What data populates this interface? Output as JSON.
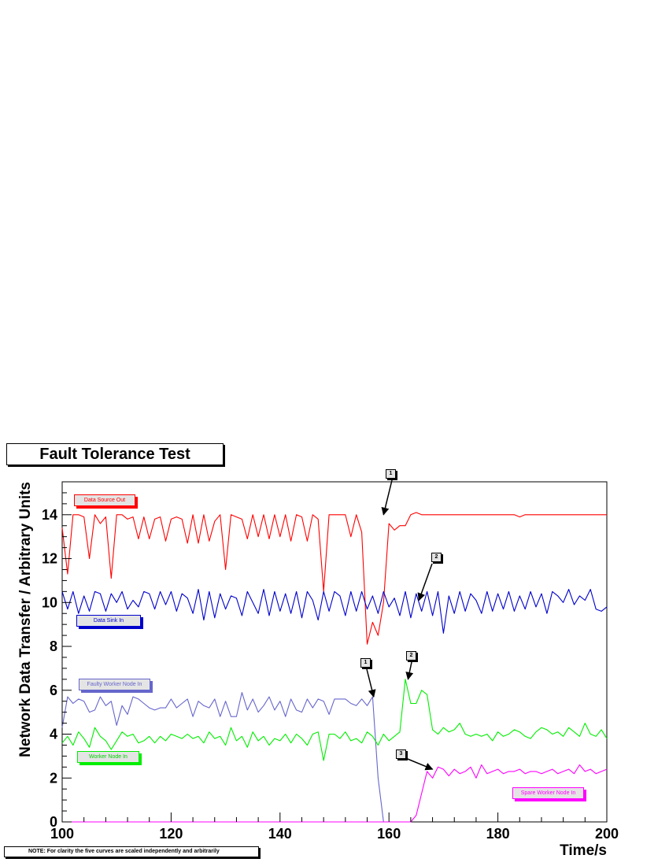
{
  "chart_data": {
    "type": "line",
    "title": "Fault Tolerance Test",
    "xlabel": "Time/s",
    "ylabel": "Network Data Transfer / Arbitrary Units",
    "xlim": [
      100,
      200
    ],
    "ylim": [
      0,
      15.5
    ],
    "x_ticks": [
      "100",
      "120",
      "140",
      "160",
      "180",
      "200"
    ],
    "y_ticks": [
      "0",
      "2",
      "4",
      "6",
      "8",
      "10",
      "12",
      "14"
    ],
    "grid": false,
    "note": "NOTE: For clarity the five curves are scaled independently and arbitrarily",
    "series": [
      {
        "name": "Data Source Out",
        "color": "#ff0000",
        "x": [
          100,
          101,
          102,
          103,
          104,
          105,
          106,
          107,
          108,
          109,
          110,
          111,
          112,
          113,
          114,
          115,
          116,
          117,
          118,
          119,
          120,
          121,
          122,
          123,
          124,
          125,
          126,
          127,
          128,
          129,
          130,
          131,
          132,
          133,
          134,
          135,
          136,
          137,
          138,
          139,
          140,
          141,
          142,
          143,
          144,
          145,
          146,
          147,
          148,
          149,
          150,
          151,
          152,
          153,
          154,
          155,
          156,
          157,
          158,
          159,
          160,
          161,
          162,
          163,
          164,
          165,
          166,
          167,
          168,
          169,
          170,
          171,
          172,
          173,
          174,
          175,
          176,
          177,
          178,
          179,
          180,
          181,
          182,
          183,
          184,
          185,
          186,
          187,
          188,
          189,
          190,
          191,
          192,
          193,
          194,
          195,
          196,
          197,
          198,
          199,
          200
        ],
        "y": [
          13.4,
          11.3,
          14.0,
          14.0,
          13.9,
          12.0,
          14.0,
          13.6,
          13.9,
          11.1,
          14.0,
          14.0,
          13.8,
          13.9,
          12.9,
          13.9,
          12.9,
          13.8,
          13.9,
          12.8,
          13.8,
          13.9,
          13.8,
          12.7,
          14.0,
          12.7,
          14.0,
          12.8,
          13.7,
          14.0,
          11.5,
          14.0,
          13.9,
          13.8,
          12.9,
          14.0,
          13.0,
          14.0,
          12.9,
          14.0,
          13.0,
          14.0,
          12.8,
          14.0,
          13.9,
          12.8,
          14.0,
          13.8,
          10.5,
          14.0,
          14.0,
          14.0,
          14.0,
          13.0,
          14.0,
          13.2,
          8.1,
          9.1,
          8.5,
          10.0,
          13.6,
          13.3,
          13.5,
          13.5,
          14.0,
          14.1,
          14.0,
          14.0,
          14.0,
          14.0,
          14.0,
          14.0,
          14.0,
          14.0,
          14.0,
          14.0,
          14.0,
          14.0,
          14.0,
          14.0,
          14.0,
          14.0,
          14.0,
          14.0,
          13.9,
          14.0,
          14.0,
          14.0,
          14.0,
          14.0,
          14.0,
          14.0,
          14.0,
          14.0,
          14.0,
          14.0,
          14.0,
          14.0,
          14.0,
          14.0,
          14.0
        ]
      },
      {
        "name": "Data Sink In",
        "color": "#0000cc",
        "x": [
          100,
          101,
          102,
          103,
          104,
          105,
          106,
          107,
          108,
          109,
          110,
          111,
          112,
          113,
          114,
          115,
          116,
          117,
          118,
          119,
          120,
          121,
          122,
          123,
          124,
          125,
          126,
          127,
          128,
          129,
          130,
          131,
          132,
          133,
          134,
          135,
          136,
          137,
          138,
          139,
          140,
          141,
          142,
          143,
          144,
          145,
          146,
          147,
          148,
          149,
          150,
          151,
          152,
          153,
          154,
          155,
          156,
          157,
          158,
          159,
          160,
          161,
          162,
          163,
          164,
          165,
          166,
          167,
          168,
          169,
          170,
          171,
          172,
          173,
          174,
          175,
          176,
          177,
          178,
          179,
          180,
          181,
          182,
          183,
          184,
          185,
          186,
          187,
          188,
          189,
          190,
          191,
          192,
          193,
          194,
          195,
          196,
          197,
          198,
          199,
          200
        ],
        "y": [
          10.5,
          9.7,
          10.5,
          9.5,
          10.3,
          9.6,
          10.5,
          10.4,
          9.6,
          10.4,
          10.0,
          10.5,
          9.7,
          10.1,
          9.8,
          10.5,
          10.4,
          9.7,
          10.5,
          9.9,
          10.5,
          9.6,
          10.4,
          10.2,
          9.5,
          10.6,
          9.2,
          10.5,
          9.3,
          10.4,
          9.7,
          10.3,
          10.2,
          9.4,
          10.5,
          10.0,
          9.5,
          10.6,
          9.4,
          10.5,
          9.6,
          10.4,
          9.5,
          10.5,
          9.3,
          10.5,
          10.1,
          9.2,
          10.5,
          9.6,
          10.5,
          10.3,
          9.4,
          10.5,
          9.6,
          10.5,
          9.7,
          10.3,
          9.5,
          10.5,
          9.8,
          10.2,
          9.4,
          10.5,
          9.3,
          10.4,
          9.6,
          10.5,
          9.4,
          10.5,
          8.6,
          10.3,
          9.5,
          10.5,
          9.6,
          10.4,
          10.1,
          9.5,
          10.5,
          9.6,
          10.4,
          9.7,
          10.5,
          9.6,
          10.3,
          9.7,
          10.5,
          9.8,
          10.4,
          9.5,
          10.5,
          10.3,
          10.0,
          10.6,
          9.9,
          10.3,
          10.1,
          10.6,
          9.7,
          9.6,
          9.8
        ]
      },
      {
        "name": "Faulty Worker Node In",
        "color": "#6666cc",
        "x": [
          100,
          101,
          102,
          103,
          104,
          105,
          106,
          107,
          108,
          109,
          110,
          111,
          112,
          113,
          114,
          115,
          116,
          117,
          118,
          119,
          120,
          121,
          122,
          123,
          124,
          125,
          126,
          127,
          128,
          129,
          130,
          131,
          132,
          133,
          134,
          135,
          136,
          137,
          138,
          139,
          140,
          141,
          142,
          143,
          144,
          145,
          146,
          147,
          148,
          149,
          150,
          151,
          152,
          153,
          154,
          155,
          156,
          157,
          158,
          159
        ],
        "y": [
          4.3,
          5.7,
          5.4,
          5.6,
          5.5,
          5.0,
          5.1,
          5.7,
          5.3,
          5.5,
          4.4,
          5.3,
          4.9,
          5.7,
          5.6,
          5.4,
          5.2,
          5.1,
          5.2,
          5.2,
          5.6,
          5.2,
          5.4,
          5.6,
          4.8,
          5.5,
          5.3,
          5.2,
          5.6,
          4.8,
          5.5,
          4.8,
          4.8,
          5.9,
          5.1,
          5.6,
          5.0,
          5.3,
          5.7,
          5.1,
          5.5,
          4.8,
          5.6,
          5.1,
          5.0,
          5.6,
          5.2,
          5.6,
          5.5,
          4.9,
          5.6,
          5.6,
          5.6,
          5.4,
          5.3,
          5.6,
          5.3,
          5.7,
          2.0,
          0.0
        ]
      },
      {
        "name": "Worker Node In",
        "color": "#00ee00",
        "x": [
          100,
          101,
          102,
          103,
          104,
          105,
          106,
          107,
          108,
          109,
          110,
          111,
          112,
          113,
          114,
          115,
          116,
          117,
          118,
          119,
          120,
          121,
          122,
          123,
          124,
          125,
          126,
          127,
          128,
          129,
          130,
          131,
          132,
          133,
          134,
          135,
          136,
          137,
          138,
          139,
          140,
          141,
          142,
          143,
          144,
          145,
          146,
          147,
          148,
          149,
          150,
          151,
          152,
          153,
          154,
          155,
          156,
          157,
          158,
          159,
          160,
          161,
          162,
          163,
          164,
          165,
          166,
          167,
          168,
          169,
          170,
          171,
          172,
          173,
          174,
          175,
          176,
          177,
          178,
          179,
          180,
          181,
          182,
          183,
          184,
          185,
          186,
          187,
          188,
          189,
          190,
          191,
          192,
          193,
          194,
          195,
          196,
          197,
          198,
          199,
          200
        ],
        "y": [
          3.6,
          3.9,
          3.5,
          4.1,
          3.8,
          3.4,
          4.3,
          3.9,
          3.7,
          3.3,
          3.7,
          4.1,
          3.9,
          4.0,
          3.6,
          3.7,
          3.9,
          3.6,
          3.9,
          3.7,
          4.0,
          3.9,
          3.8,
          4.0,
          3.8,
          3.9,
          3.6,
          4.1,
          3.8,
          3.9,
          3.5,
          4.3,
          3.7,
          3.9,
          3.4,
          4.1,
          3.7,
          3.9,
          3.5,
          3.8,
          3.7,
          4.0,
          3.6,
          4.0,
          3.8,
          3.5,
          4.0,
          4.1,
          2.8,
          4.0,
          4.0,
          3.8,
          4.1,
          3.7,
          3.8,
          3.6,
          4.1,
          3.9,
          3.5,
          4.0,
          3.7,
          3.9,
          4.1,
          6.5,
          5.4,
          5.4,
          6.0,
          5.8,
          4.2,
          4.0,
          4.3,
          4.1,
          4.2,
          4.5,
          4.0,
          3.9,
          4.0,
          3.9,
          4.0,
          3.7,
          4.1,
          3.9,
          4.0,
          4.2,
          4.1,
          3.9,
          3.8,
          4.1,
          4.3,
          4.2,
          4.0,
          4.1,
          3.9,
          4.3,
          4.1,
          3.9,
          4.5,
          4.0,
          3.9,
          4.2,
          3.8
        ]
      },
      {
        "name": "Spare Worker Node In",
        "color": "#ff00ff",
        "x": [
          100,
          164,
          165,
          166,
          167,
          168,
          169,
          170,
          171,
          172,
          173,
          174,
          175,
          176,
          177,
          178,
          179,
          180,
          181,
          182,
          183,
          184,
          185,
          186,
          187,
          188,
          189,
          190,
          191,
          192,
          193,
          194,
          195,
          196,
          197,
          198,
          199,
          200
        ],
        "y": [
          0,
          0,
          0.3,
          1.3,
          2.3,
          2.0,
          2.5,
          2.4,
          2.1,
          2.4,
          2.2,
          2.3,
          2.5,
          2.0,
          2.6,
          2.2,
          2.3,
          2.4,
          2.2,
          2.3,
          2.3,
          2.4,
          2.2,
          2.3,
          2.3,
          2.2,
          2.3,
          2.4,
          2.2,
          2.3,
          2.4,
          2.2,
          2.6,
          2.3,
          2.4,
          2.2,
          2.3,
          2.4
        ]
      }
    ],
    "annotations": [
      {
        "label": "1",
        "x": 159,
        "y": 14.0
      },
      {
        "label": "2",
        "x": 165.5,
        "y": 10.1
      },
      {
        "label": "1",
        "x": 157.2,
        "y": 5.7
      },
      {
        "label": "2",
        "x": 163.5,
        "y": 6.5
      },
      {
        "label": "3",
        "x": 168,
        "y": 2.4
      }
    ]
  }
}
